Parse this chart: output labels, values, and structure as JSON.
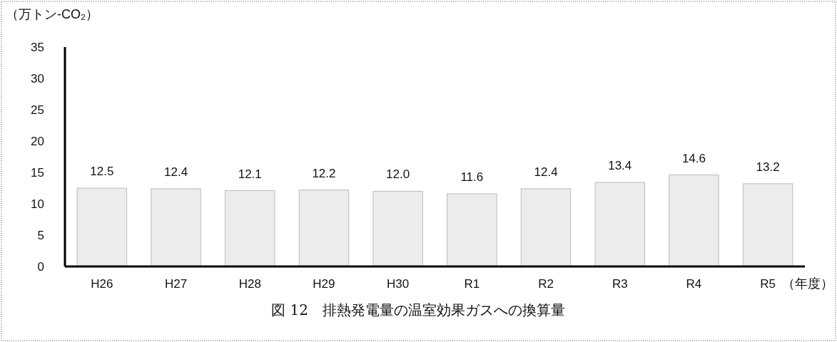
{
  "chart_data": {
    "type": "bar",
    "title": "図 12　排熱発電量の温室効果ガスへの換算量",
    "ylabel": "（万トン-CO₂）",
    "xlabel": "（年度）",
    "categories": [
      "H26",
      "H27",
      "H28",
      "H29",
      "H30",
      "R1",
      "R2",
      "R3",
      "R4",
      "R5"
    ],
    "values": [
      12.5,
      12.4,
      12.1,
      12.2,
      12.0,
      11.6,
      12.4,
      13.4,
      14.6,
      13.2
    ],
    "color": "#ececec",
    "ylim": [
      0,
      35
    ],
    "yticks": [
      0,
      5,
      10,
      15,
      20,
      25,
      30,
      35
    ],
    "value_labels": [
      "12.5",
      "12.4",
      "12.1",
      "12.2",
      "12.0",
      "11.6",
      "12.4",
      "13.4",
      "14.6",
      "13.2"
    ],
    "grid": false
  }
}
